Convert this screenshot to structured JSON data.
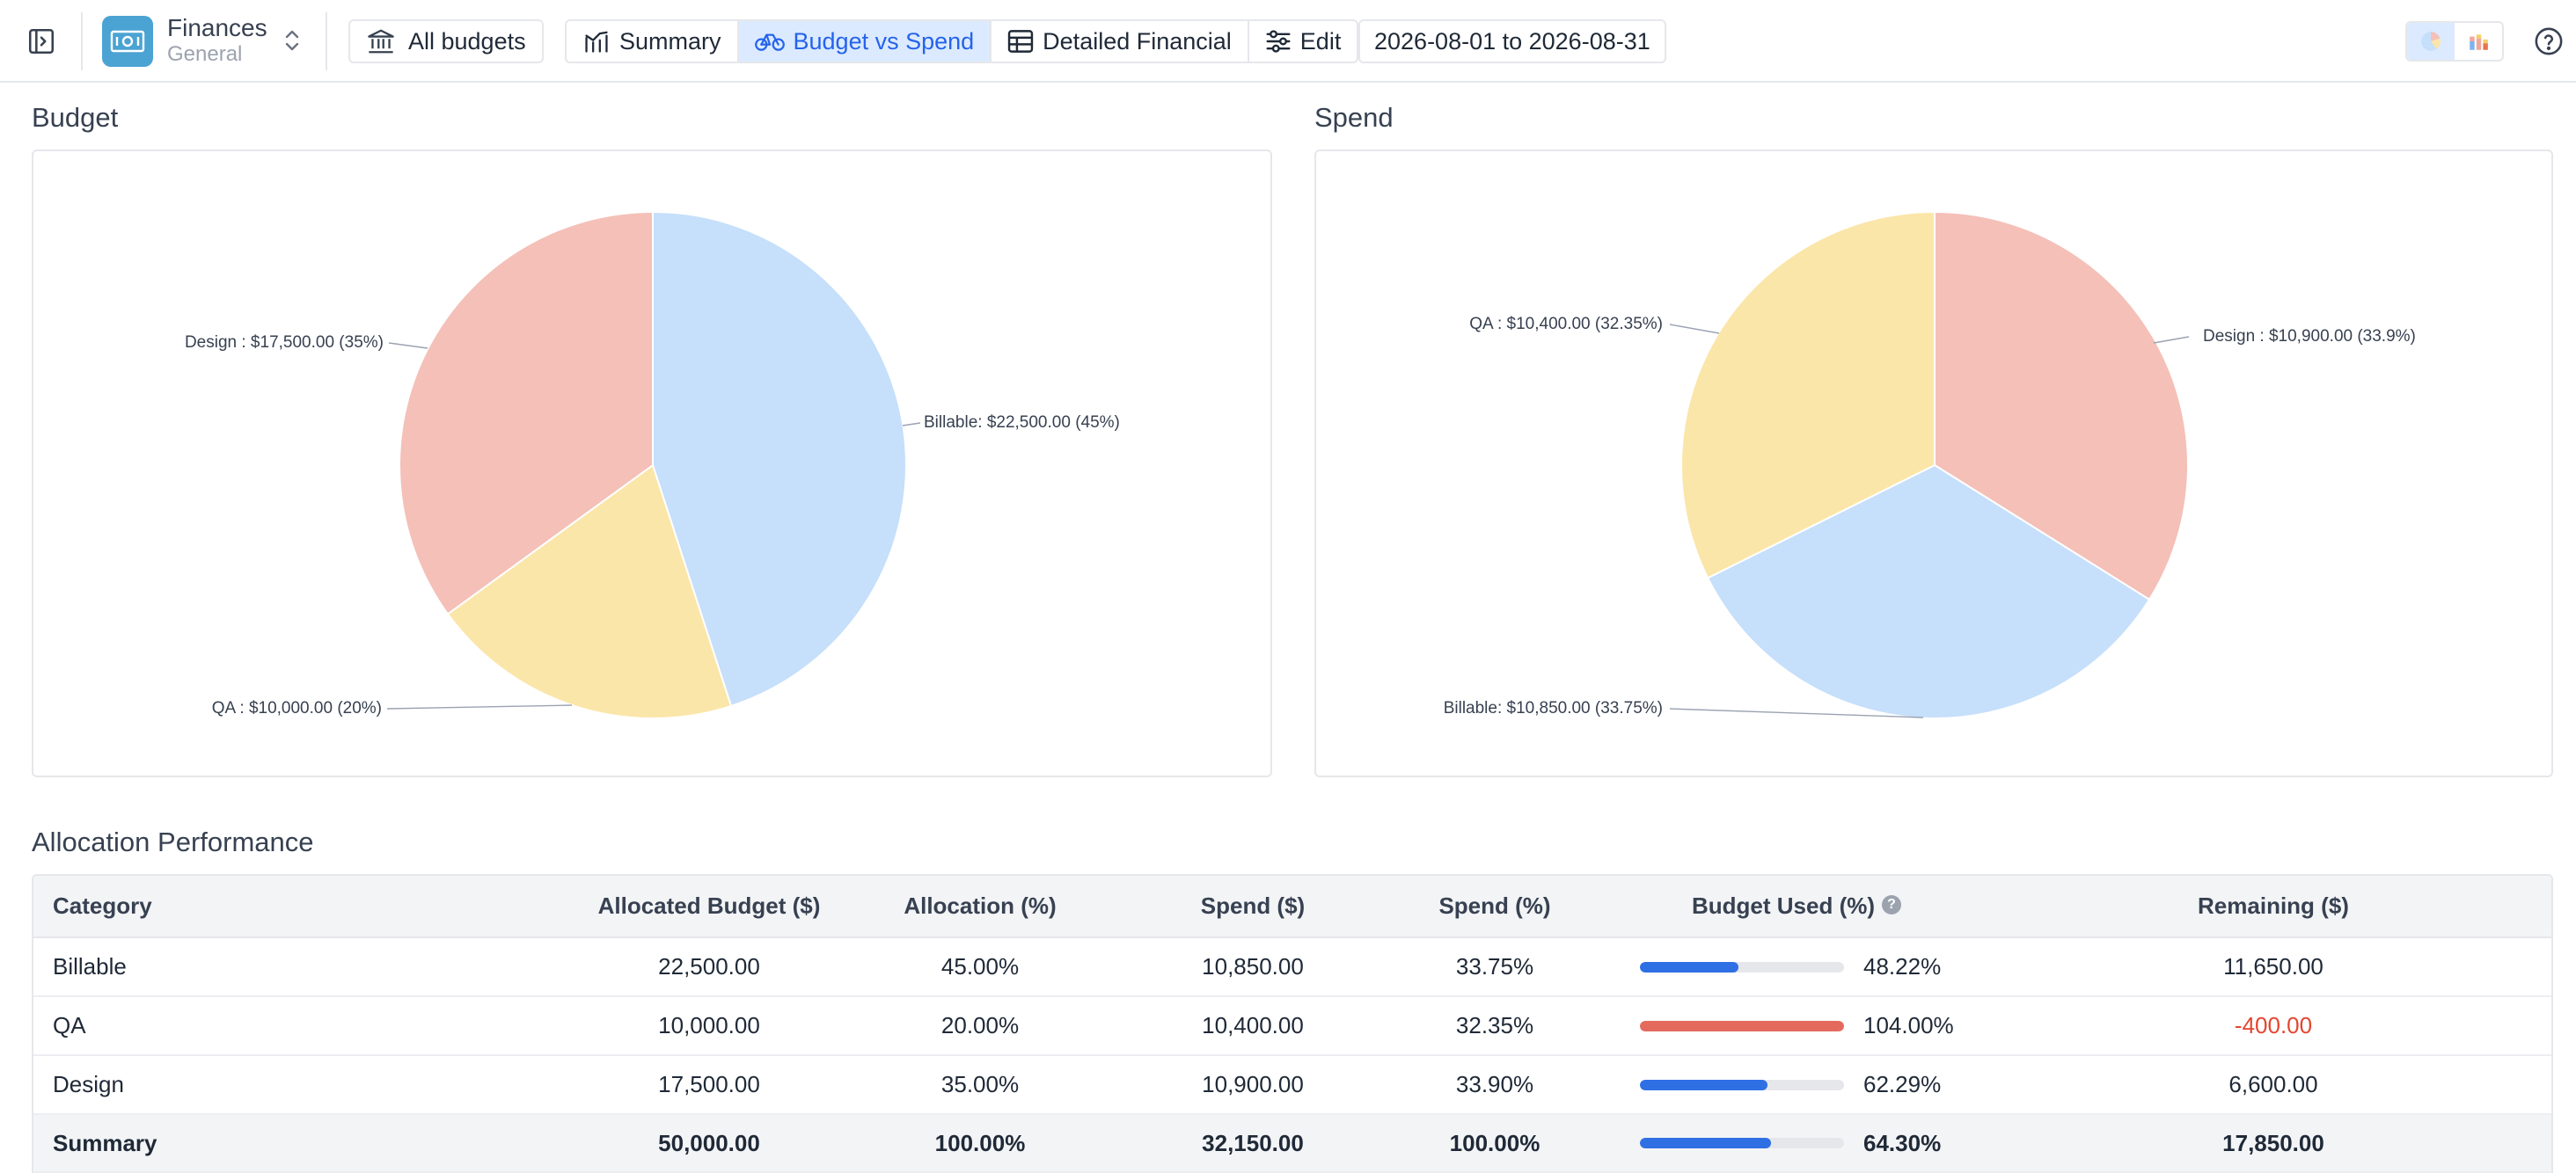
{
  "app": {
    "name": "Finances",
    "subtitle": "General"
  },
  "toolbar": {
    "all_budgets_label": "All budgets",
    "tabs": [
      {
        "label": "Summary",
        "icon": "chart-line-icon",
        "active": false
      },
      {
        "label": "Budget vs Spend",
        "icon": "bicycle-icon",
        "active": true
      },
      {
        "label": "Detailed Financial",
        "icon": "table-icon",
        "active": false
      },
      {
        "label": "Edit",
        "icon": "sliders-icon",
        "active": false
      }
    ],
    "date_range": "2026-08-01 to 2026-08-31",
    "view_toggle": [
      "pie-chart-icon",
      "bar-chart-icon"
    ],
    "active_view": "pie"
  },
  "colors": {
    "billable": "#c6dffa",
    "qa": "#fbe6a9",
    "design": "#f4c0b8",
    "accent": "#2563eb",
    "bar": "#2f6fe4",
    "over_bar": "#e46a5e",
    "negative": "#e5452f"
  },
  "budget_chart": {
    "title": "Budget",
    "chart_data": {
      "type": "pie",
      "slices": [
        {
          "name": "Billable",
          "value": 22500,
          "percent": 45,
          "label": "Billable: $22,500.00 (45%)"
        },
        {
          "name": "QA",
          "value": 10000,
          "percent": 20,
          "label": "QA : $10,000.00 (20%)"
        },
        {
          "name": "Design",
          "value": 17500,
          "percent": 35,
          "label": "Design : $17,500.00 (35%)"
        }
      ]
    }
  },
  "spend_chart": {
    "title": "Spend",
    "chart_data": {
      "type": "pie",
      "slices": [
        {
          "name": "Design",
          "value": 10900,
          "percent": 33.9,
          "label": "Design : $10,900.00 (33.9%)"
        },
        {
          "name": "Billable",
          "value": 10850,
          "percent": 33.75,
          "label": "Billable: $10,850.00 (33.75%)"
        },
        {
          "name": "QA",
          "value": 10400,
          "percent": 32.35,
          "label": "QA : $10,400.00 (32.35%)"
        }
      ]
    }
  },
  "allocation": {
    "title": "Allocation Performance",
    "columns": [
      "Category",
      "Allocated Budget ($)",
      "Allocation (%)",
      "Spend ($)",
      "Spend (%)",
      "Budget Used (%)",
      "Remaining ($)"
    ],
    "rows": [
      {
        "category": "Billable",
        "allocated": "22,500.00",
        "allocation_pct": "45.00%",
        "spend": "10,850.00",
        "spend_pct": "33.75%",
        "used_pct": "48.22%",
        "used_value": 48.22,
        "remaining": "11,650.00",
        "negative": false
      },
      {
        "category": "QA",
        "allocated": "10,000.00",
        "allocation_pct": "20.00%",
        "spend": "10,400.00",
        "spend_pct": "32.35%",
        "used_pct": "104.00%",
        "used_value": 104.0,
        "remaining": "-400.00",
        "negative": true
      },
      {
        "category": "Design",
        "allocated": "17,500.00",
        "allocation_pct": "35.00%",
        "spend": "10,900.00",
        "spend_pct": "33.90%",
        "used_pct": "62.29%",
        "used_value": 62.29,
        "remaining": "6,600.00",
        "negative": false
      }
    ],
    "summary": {
      "category": "Summary",
      "allocated": "50,000.00",
      "allocation_pct": "100.00%",
      "spend": "32,150.00",
      "spend_pct": "100.00%",
      "used_pct": "64.30%",
      "used_value": 64.3,
      "remaining": "17,850.00"
    }
  }
}
